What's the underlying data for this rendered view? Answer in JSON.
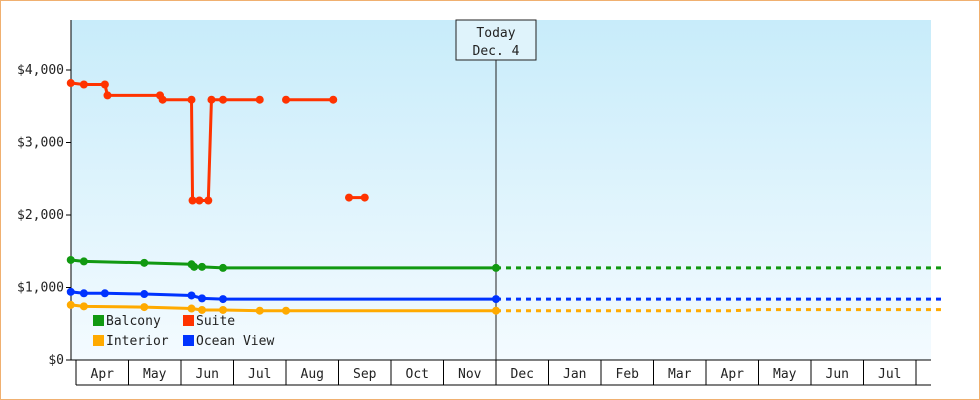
{
  "chart_data": {
    "type": "line",
    "title": "",
    "xlabel": "",
    "ylabel": "",
    "ylim": [
      0,
      4000
    ],
    "y_ticks": [
      "$0",
      "$1,000",
      "$2,000",
      "$3,000",
      "$4,000"
    ],
    "months": [
      "Apr",
      "May",
      "Jun",
      "Jul",
      "Aug",
      "Sep",
      "Oct",
      "Nov",
      "Dec",
      "Jan",
      "Feb",
      "Mar",
      "Apr",
      "May",
      "Jun",
      "Jul"
    ],
    "today_marker": {
      "line1": "Today",
      "line2": "Dec. 4",
      "month_pos": 8.0
    },
    "legend": {
      "placement": "bottom-left"
    },
    "series": [
      {
        "name": "Suite",
        "color": "#ff3300",
        "segments": [
          [
            [
              -0.1,
              3820
            ],
            [
              0.15,
              3800
            ],
            [
              0.55,
              3800
            ],
            [
              0.6,
              3650
            ],
            [
              1.6,
              3650
            ],
            [
              1.65,
              3590
            ],
            [
              2.2,
              3590
            ],
            [
              2.22,
              2200
            ],
            [
              2.35,
              2200
            ],
            [
              2.52,
              2200
            ],
            [
              2.58,
              3590
            ],
            [
              2.8,
              3590
            ],
            [
              3.5,
              3590
            ]
          ],
          [
            [
              4.0,
              3590
            ],
            [
              4.9,
              3590
            ]
          ],
          [
            [
              5.2,
              2240
            ],
            [
              5.5,
              2240
            ]
          ]
        ],
        "projection": null
      },
      {
        "name": "Balcony",
        "color": "#119911",
        "segments": [
          [
            [
              -0.1,
              1380
            ],
            [
              0.15,
              1360
            ],
            [
              1.3,
              1340
            ],
            [
              2.2,
              1320
            ],
            [
              2.25,
              1285
            ],
            [
              2.4,
              1285
            ],
            [
              2.8,
              1270
            ],
            [
              8.0,
              1270
            ]
          ]
        ],
        "projection": [
          [
            8.0,
            1270
          ],
          [
            16.5,
            1270
          ]
        ]
      },
      {
        "name": "Ocean View",
        "color": "#0033ff",
        "segments": [
          [
            [
              -0.1,
              940
            ],
            [
              0.15,
              920
            ],
            [
              0.55,
              920
            ],
            [
              1.3,
              910
            ],
            [
              2.2,
              890
            ],
            [
              2.4,
              850
            ],
            [
              2.8,
              840
            ],
            [
              8.0,
              840
            ]
          ]
        ],
        "projection": [
          [
            8.0,
            840
          ],
          [
            16.5,
            840
          ]
        ]
      },
      {
        "name": "Interior",
        "color": "#ffaa00",
        "segments": [
          [
            [
              -0.1,
              760
            ],
            [
              0.15,
              740
            ],
            [
              1.3,
              730
            ],
            [
              2.2,
              710
            ],
            [
              2.4,
              690
            ],
            [
              2.8,
              690
            ],
            [
              3.5,
              680
            ],
            [
              4.0,
              680
            ],
            [
              8.0,
              680
            ]
          ]
        ],
        "projection": [
          [
            8.0,
            680
          ],
          [
            12.5,
            680
          ],
          [
            13.0,
            695
          ],
          [
            16.5,
            695
          ]
        ]
      }
    ]
  }
}
